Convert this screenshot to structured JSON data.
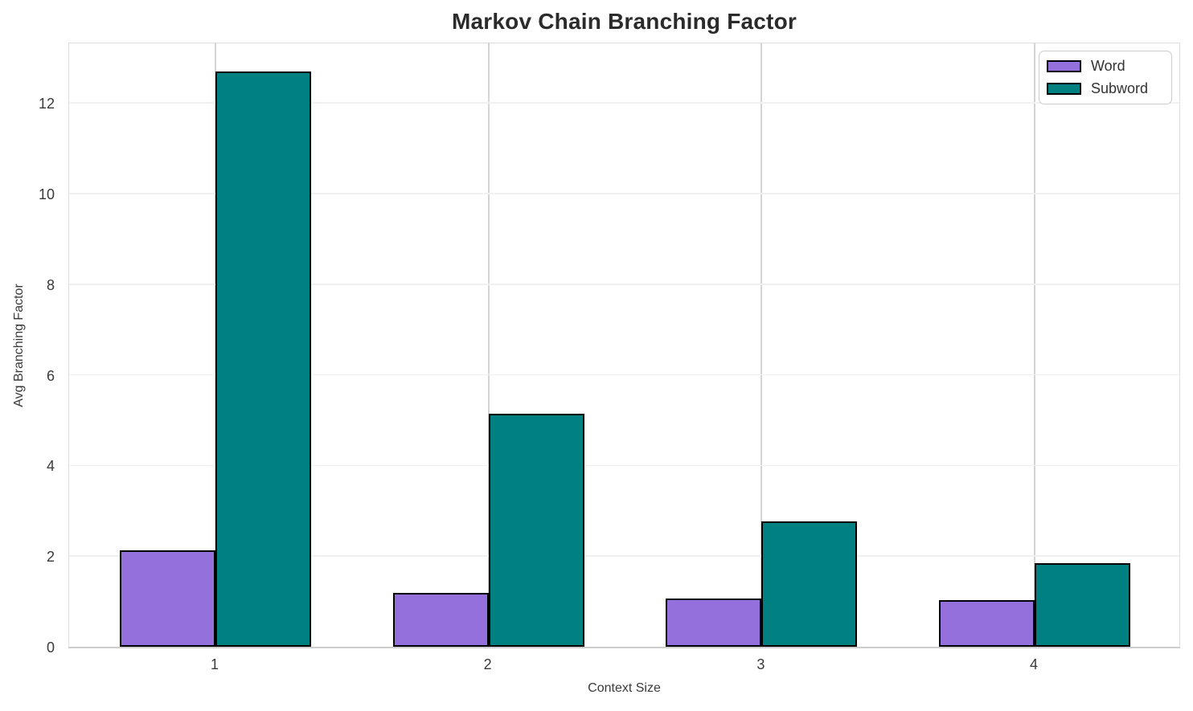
{
  "chart_data": {
    "type": "bar",
    "title": "Markov Chain Branching Factor",
    "xlabel": "Context Size",
    "ylabel": "Avg Branching Factor",
    "categories": [
      "1",
      "2",
      "3",
      "4"
    ],
    "series": [
      {
        "name": "Word",
        "color": "#9370DB",
        "values": [
          2.13,
          1.18,
          1.06,
          1.02
        ]
      },
      {
        "name": "Subword",
        "color": "#008080",
        "values": [
          12.7,
          5.15,
          2.77,
          1.84
        ]
      }
    ],
    "ylim": [
      0,
      13.35
    ],
    "yticks": [
      0,
      2,
      4,
      6,
      8,
      10,
      12
    ],
    "bar_width": 0.35,
    "grid": true,
    "legend_position": "upper right",
    "colors": {
      "bar_edge": "#000000",
      "grid_horizontal": "#f0f0f0",
      "grid_vertical": "#d4d4d4",
      "title_text": "#2b2b2b",
      "tick_text": "#3a3a3a"
    }
  }
}
